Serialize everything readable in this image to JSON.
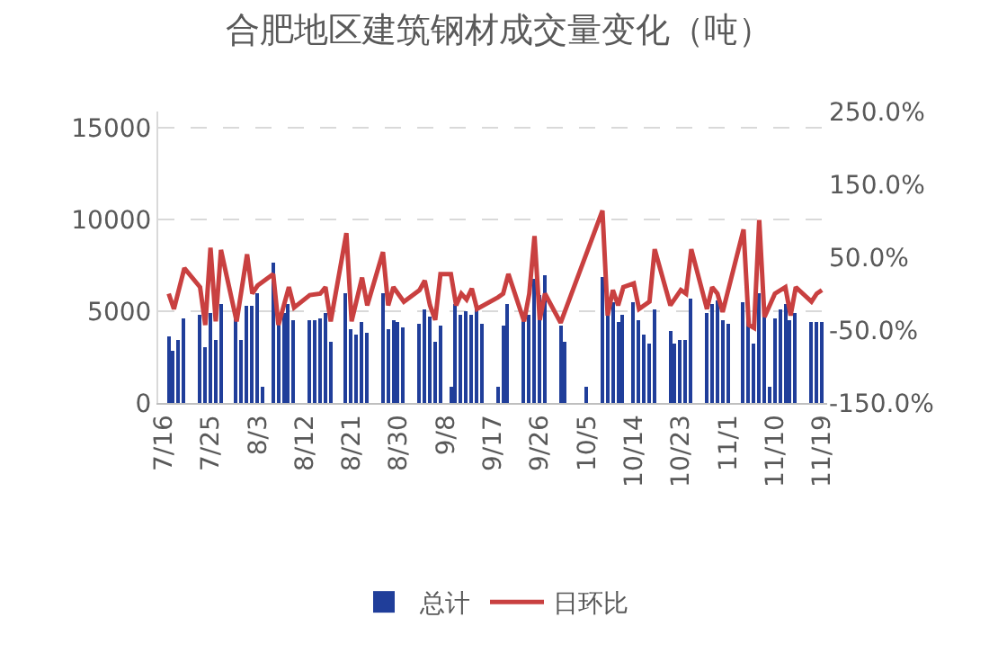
{
  "chart_data": {
    "type": "bar",
    "title": "合肥地区建筑钢材成交量变化（吨）",
    "x": [
      "--07-17",
      "--07-18",
      "--07-19",
      "--07-20",
      "--07-23",
      "--07-24",
      "--07-25",
      "--07-26",
      "--07-27",
      "--07-30",
      "--07-31",
      "--08-01",
      "--08-02",
      "--08-03",
      "--08-04",
      "--08-06",
      "--08-07",
      "--08-08",
      "--08-09",
      "--08-10",
      "--08-13",
      "--08-14",
      "--08-15",
      "--08-16",
      "--08-17",
      "--08-20",
      "--08-21",
      "--08-22",
      "--08-23",
      "--08-24",
      "--08-27",
      "--08-28",
      "--08-29",
      "--08-30",
      "--08-31",
      "--09-03",
      "--09-04",
      "--09-05",
      "--09-06",
      "--09-07",
      "--09-09",
      "--09-10",
      "--09-11",
      "--09-12",
      "--09-13",
      "--09-14",
      "--09-15",
      "--09-18",
      "--09-19",
      "--09-20",
      "--09-23",
      "--09-24",
      "--09-25",
      "--09-26",
      "--09-27",
      "--09-30",
      "--10-01",
      "--10-05",
      "--10-08",
      "--10-09",
      "--10-10",
      "--10-11",
      "--10-12",
      "--10-14",
      "--10-15",
      "--10-16",
      "--10-17",
      "--10-18",
      "--10-21",
      "--10-22",
      "--10-23",
      "--10-24",
      "--10-25",
      "--10-28",
      "--10-29",
      "--10-30",
      "--10-31",
      "--11-01",
      "--11-04",
      "--11-05",
      "--11-06",
      "--11-07",
      "--11-08",
      "--11-09",
      "--11-10",
      "--11-11",
      "--11-12",
      "--11-13",
      "--11-14",
      "--11-17",
      "--11-18",
      "--11-19"
    ],
    "series": [
      {
        "name": "总计",
        "color": "#203e9a",
        "values": [
          3600,
          2800,
          3400,
          4600,
          4800,
          3000,
          4900,
          3400,
          5400,
          4800,
          3400,
          5300,
          5300,
          6000,
          900,
          7700,
          4500,
          4900,
          5400,
          4500,
          4500,
          4500,
          4600,
          4900,
          3300,
          6000,
          4000,
          3700,
          4400,
          3800,
          6000,
          4000,
          4500,
          4400,
          4100,
          4300,
          5100,
          4700,
          3300,
          4200,
          900,
          5400,
          4800,
          5000,
          4800,
          5300,
          4300,
          900,
          4200,
          5400,
          4800,
          4800,
          6800,
          5900,
          7000,
          4200,
          3300,
          900,
          6900,
          4900,
          5500,
          4400,
          4800,
          5500,
          4500,
          3700,
          3200,
          5100,
          3900,
          3200,
          3400,
          3400,
          5700,
          4900,
          5400,
          5600,
          4500,
          4300,
          5500,
          4700,
          3200,
          6000,
          4900,
          900,
          4600,
          5100,
          5400,
          4500,
          4900,
          4400,
          4400,
          4400
        ]
      },
      {
        "name": "日环比",
        "type": "line",
        "axis": "y2",
        "color": "#c94040",
        "values": [
          0,
          -21,
          null,
          35,
          9,
          -43,
          63,
          -38,
          60,
          -38,
          null,
          54,
          0,
          11,
          null,
          27,
          -43,
          null,
          9,
          -19,
          -2,
          null,
          0,
          9,
          -38,
          83,
          -38,
          null,
          22,
          -16,
          57,
          -16,
          9,
          null,
          -11,
          5,
          18,
          -16,
          -36,
          27,
          27,
          -16,
          0,
          -8,
          7,
          -21,
          null,
          -5,
          0,
          27,
          -38,
          0,
          79,
          -36,
          0,
          -40,
          null,
          null,
          114,
          -30,
          5,
          -16,
          9,
          14,
          -21,
          null,
          -11,
          61,
          -16,
          null,
          5,
          0,
          61,
          -21,
          9,
          0,
          -25,
          null,
          88,
          -43,
          -47,
          101,
          -32,
          null,
          0,
          null,
          9,
          -30,
          9,
          -11,
          0,
          5
        ]
      }
    ],
    "xlim": [
      "--07-15",
      "--11-20"
    ],
    "xticks": [
      {
        "value": "--07-16",
        "label": "7/16"
      },
      {
        "value": "--07-25",
        "label": "7/25"
      },
      {
        "value": "--08-03",
        "label": "8/3"
      },
      {
        "value": "--08-12",
        "label": "8/12"
      },
      {
        "value": "--08-21",
        "label": "8/21"
      },
      {
        "value": "--08-30",
        "label": "8/30"
      },
      {
        "value": "--09-08",
        "label": "9/8"
      },
      {
        "value": "--09-17",
        "label": "9/17"
      },
      {
        "value": "--09-26",
        "label": "9/26"
      },
      {
        "value": "--10-05",
        "label": "10/5"
      },
      {
        "value": "--10-14",
        "label": "10/14"
      },
      {
        "value": "--10-23",
        "label": "10/23"
      },
      {
        "value": "--11-01",
        "label": "11/1"
      },
      {
        "value": "--11-10",
        "label": "11/10"
      },
      {
        "value": "--11-19",
        "label": "11/19"
      }
    ],
    "ylim": [
      0,
      15900
    ],
    "yticks": [
      0,
      5000,
      10000,
      15000
    ],
    "y2lim": [
      -150,
      250
    ],
    "y2ticks": [
      {
        "value": -150,
        "label": "-150.0%"
      },
      {
        "value": -50,
        "label": "-50.0%"
      },
      {
        "value": 50,
        "label": "50.0%"
      },
      {
        "value": 150,
        "label": "150.0%"
      },
      {
        "value": 250,
        "label": "250.0%"
      }
    ],
    "grid": "y",
    "legend": "bottom",
    "marker": "none",
    "line_style": "solid"
  }
}
